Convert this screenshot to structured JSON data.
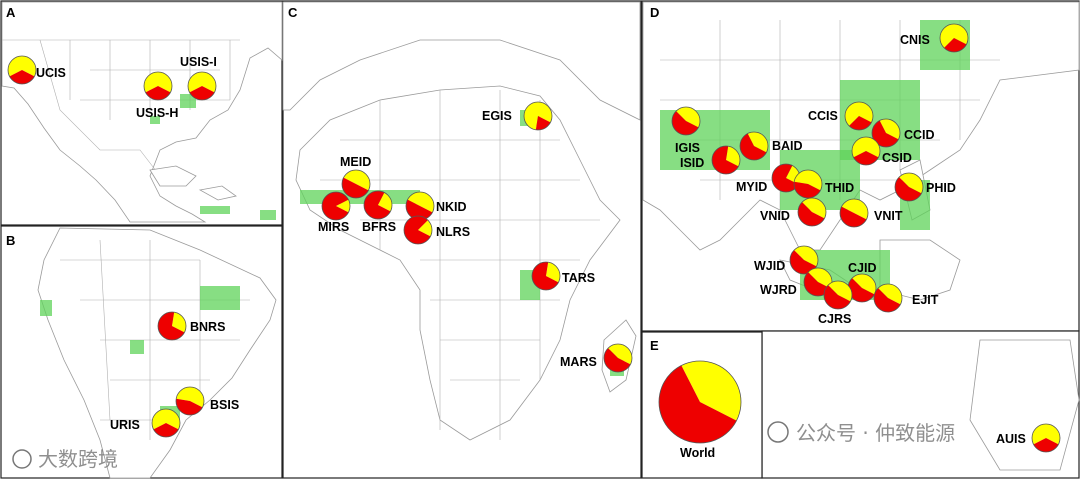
{
  "colors": {
    "yellow": "#ffff00",
    "red": "#ee0000",
    "rice": "#5fd35a"
  },
  "panels": [
    {
      "id": "A",
      "label": "A"
    },
    {
      "id": "B",
      "label": "B"
    },
    {
      "id": "C",
      "label": "C"
    },
    {
      "id": "D",
      "label": "D"
    },
    {
      "id": "E",
      "label": "E"
    }
  ],
  "sites": [
    {
      "code": "UCIS",
      "red_share": 0.35,
      "size": "small"
    },
    {
      "code": "USIS-H",
      "red_share": 0.35,
      "size": "small"
    },
    {
      "code": "USIS-I",
      "red_share": 0.35,
      "size": "small"
    },
    {
      "code": "BNRS",
      "red_share": 0.7,
      "size": "small"
    },
    {
      "code": "BSIS",
      "red_share": 0.45,
      "size": "small"
    },
    {
      "code": "URIS",
      "red_share": 0.35,
      "size": "small"
    },
    {
      "code": "EGIS",
      "red_share": 0.2,
      "size": "small"
    },
    {
      "code": "MEID",
      "red_share": 0.5,
      "size": "small"
    },
    {
      "code": "MIRS",
      "red_share": 0.85,
      "size": "small"
    },
    {
      "code": "BFRS",
      "red_share": 0.75,
      "size": "small"
    },
    {
      "code": "NKID",
      "red_share": 0.5,
      "size": "small"
    },
    {
      "code": "NLRS",
      "red_share": 0.8,
      "size": "small"
    },
    {
      "code": "TARS",
      "red_share": 0.7,
      "size": "small"
    },
    {
      "code": "MARS",
      "red_share": 0.55,
      "size": "small"
    },
    {
      "code": "CNIS",
      "red_share": 0.3,
      "size": "small"
    },
    {
      "code": "IGIS",
      "red_share": 0.55,
      "size": "small"
    },
    {
      "code": "ISID",
      "red_share": 0.7,
      "size": "small"
    },
    {
      "code": "BAID",
      "red_share": 0.6,
      "size": "small"
    },
    {
      "code": "CCIS",
      "red_share": 0.3,
      "size": "small"
    },
    {
      "code": "CCID",
      "red_share": 0.6,
      "size": "small"
    },
    {
      "code": "CSID",
      "red_share": 0.35,
      "size": "small"
    },
    {
      "code": "MYID",
      "red_share": 0.75,
      "size": "small"
    },
    {
      "code": "THID",
      "red_share": 0.45,
      "size": "small"
    },
    {
      "code": "PHID",
      "red_share": 0.55,
      "size": "small"
    },
    {
      "code": "VNID",
      "red_share": 0.55,
      "size": "small"
    },
    {
      "code": "VNIT",
      "red_share": 0.5,
      "size": "small"
    },
    {
      "code": "WJID",
      "red_share": 0.55,
      "size": "small"
    },
    {
      "code": "WJRD",
      "red_share": 0.55,
      "size": "small"
    },
    {
      "code": "CJID",
      "red_share": 0.55,
      "size": "small"
    },
    {
      "code": "CJRS",
      "red_share": 0.55,
      "size": "small"
    },
    {
      "code": "EJIT",
      "red_share": 0.55,
      "size": "small"
    },
    {
      "code": "AUIS",
      "red_share": 0.35,
      "size": "small"
    },
    {
      "code": "World",
      "red_share": 0.6,
      "size": "large"
    }
  ],
  "watermarks": {
    "left": "大数跨境",
    "right": "公众号 · 仲致能源"
  }
}
